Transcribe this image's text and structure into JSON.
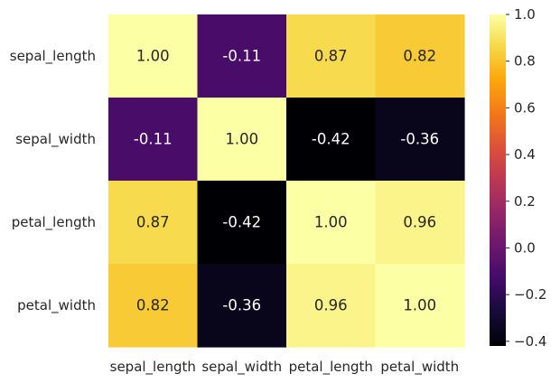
{
  "chart_data": {
    "type": "heatmap",
    "title": "",
    "xlabel": "",
    "ylabel": "",
    "x_categories": [
      "sepal_length",
      "sepal_width",
      "petal_length",
      "petal_width"
    ],
    "y_categories": [
      "sepal_length",
      "sepal_width",
      "petal_length",
      "petal_width"
    ],
    "values": [
      [
        1.0,
        -0.11,
        0.87,
        0.82
      ],
      [
        -0.11,
        1.0,
        -0.42,
        -0.36
      ],
      [
        0.87,
        -0.42,
        1.0,
        0.96
      ],
      [
        0.82,
        -0.36,
        0.96,
        1.0
      ]
    ],
    "cell_labels": [
      [
        "1.00",
        "-0.11",
        "0.87",
        "0.82"
      ],
      [
        "-0.11",
        "1.00",
        "-0.42",
        "-0.36"
      ],
      [
        "0.87",
        "-0.42",
        "1.00",
        "0.96"
      ],
      [
        "0.82",
        "-0.36",
        "0.96",
        "1.00"
      ]
    ],
    "colormap": "inferno",
    "value_range": [
      -0.42,
      1.0
    ],
    "colorbar": {
      "position": "right",
      "ticks": [
        -0.4,
        -0.2,
        0.0,
        0.2,
        0.4,
        0.6,
        0.8,
        1.0
      ],
      "tick_labels": [
        "−0.4",
        "−0.2",
        "0.0",
        "0.2",
        "0.4",
        "0.6",
        "0.8",
        "1.0"
      ]
    },
    "grid": false,
    "legend": "none"
  }
}
